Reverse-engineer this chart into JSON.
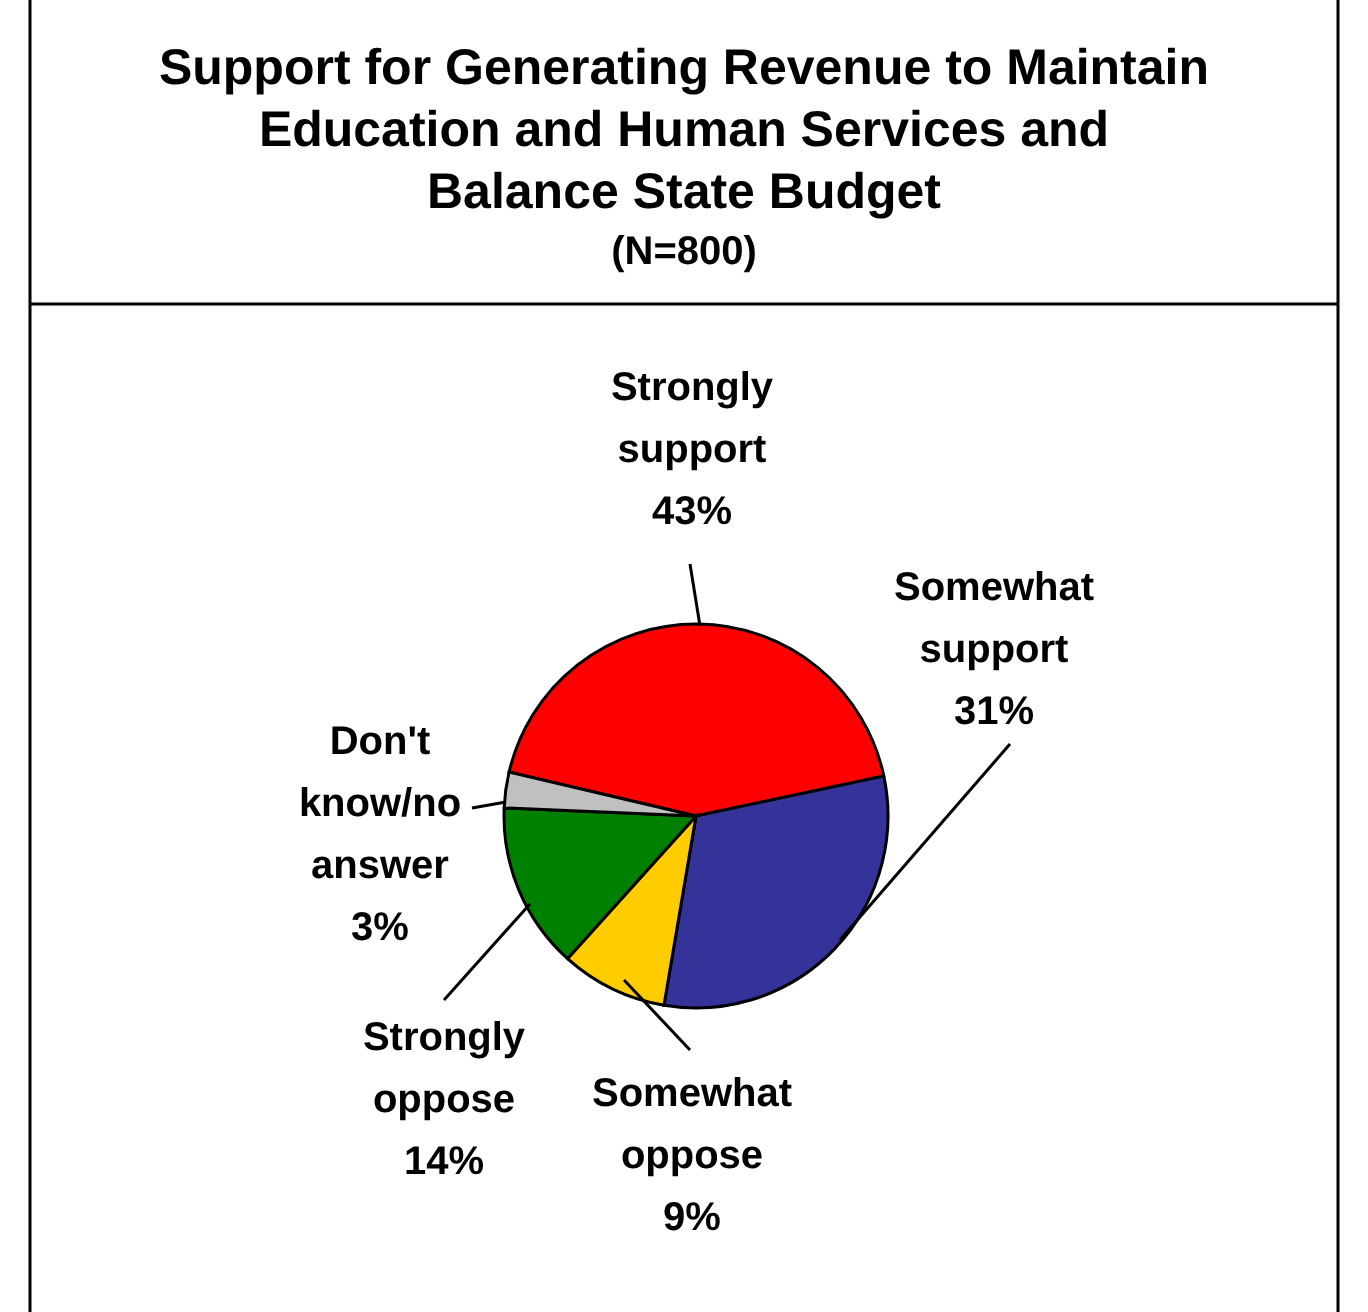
{
  "chart_data": {
    "type": "pie",
    "title": "Support for Generating Revenue to Maintain\nEducation and Human Services and\nBalance State Budget",
    "subtitle": "(N=800)",
    "categories": [
      "Strongly support",
      "Somewhat support",
      "Somewhat oppose",
      "Strongly oppose",
      "Don't know/no answer"
    ],
    "values": [
      43,
      31,
      9,
      14,
      3
    ],
    "value_labels": [
      "43%",
      "31%",
      "9%",
      "14%",
      "3%"
    ],
    "colors": [
      "#ff0000",
      "#333399",
      "#ffcc00",
      "#008000",
      "#c0c0c0"
    ]
  }
}
